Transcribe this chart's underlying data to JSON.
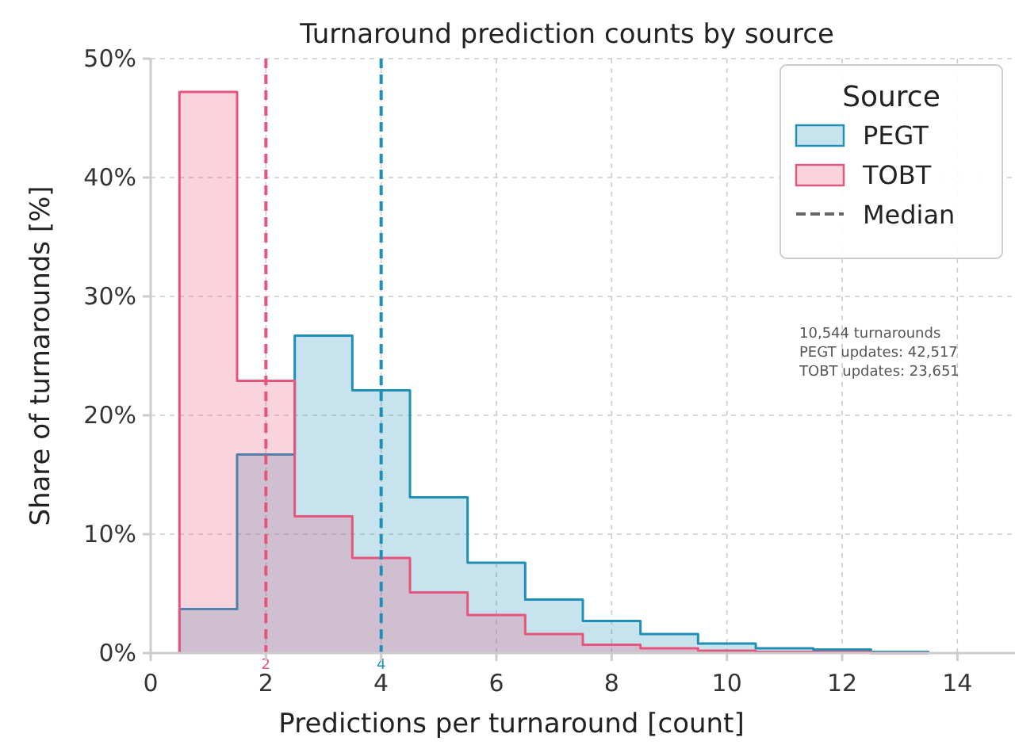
{
  "chart_data": {
    "type": "histogram",
    "title": "Turnaround prediction counts by source",
    "xlabel": "Predictions per turnaround [count]",
    "ylabel": "Share of turnarounds [%]",
    "legend_title": "Source",
    "bins": [
      0.5,
      1.5,
      2.5,
      3.5,
      4.5,
      5.5,
      6.5,
      7.5,
      8.5,
      9.5,
      10.5,
      11.5,
      12.5,
      13.5
    ],
    "series": [
      {
        "name": "PEGT",
        "color": "#1f8fb8",
        "values": [
          3.7,
          16.7,
          26.7,
          22.1,
          13.1,
          7.6,
          4.5,
          2.7,
          1.6,
          0.8,
          0.4,
          0.3,
          0.1
        ]
      },
      {
        "name": "TOBT",
        "color": "#e8557c",
        "values": [
          47.2,
          22.9,
          11.5,
          8.0,
          5.1,
          3.2,
          1.6,
          0.7,
          0.4,
          0.2,
          0.1,
          0.1,
          0
        ]
      }
    ],
    "xlim": [
      0,
      15
    ],
    "xticks": [
      0,
      2,
      4,
      6,
      8,
      10,
      12,
      14
    ],
    "ylim": [
      0,
      50
    ],
    "yticks": [
      {
        "value": 0,
        "label": "0%"
      },
      {
        "value": 10,
        "label": "10%"
      },
      {
        "value": 20,
        "label": "20%"
      },
      {
        "value": 30,
        "label": "30%"
      },
      {
        "value": 40,
        "label": "40%"
      },
      {
        "value": 50,
        "label": "50%"
      }
    ],
    "ref_lines": [
      {
        "axis": "x",
        "value": 2,
        "label": "2",
        "color": "#e8557c",
        "line_style": "dashed"
      },
      {
        "axis": "x",
        "value": 4,
        "label": "4",
        "color": "#1f8fb8",
        "line_style": "dashed"
      }
    ],
    "annotations": [
      "Median",
      "10,544 turnarounds",
      "PEGT updates: 42,517",
      "TOBT updates: 23,651"
    ],
    "grid": true,
    "legend": "top right"
  }
}
